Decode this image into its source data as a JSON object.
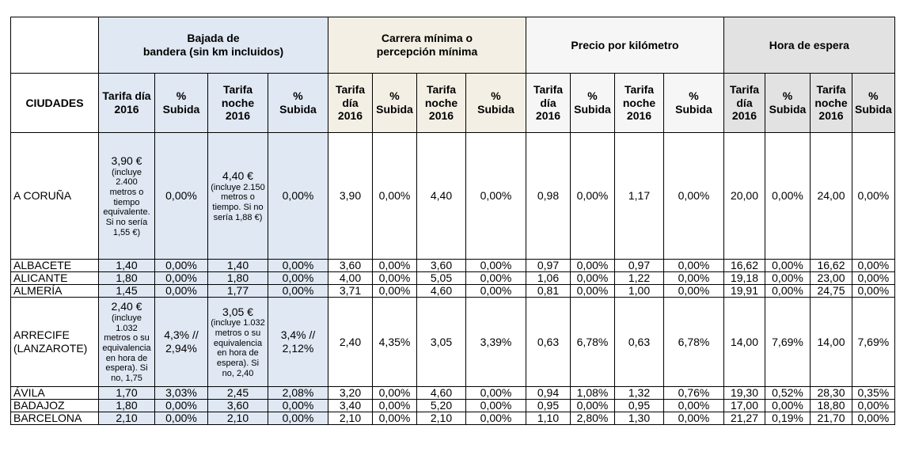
{
  "groups": [
    {
      "line1": "Bajada de",
      "line2": "bandera (sin km incluidos)"
    },
    {
      "line1": "Carrera mínima o",
      "line2": "percepción mínima"
    },
    {
      "line1": "Precio por kilómetro",
      "line2": ""
    },
    {
      "line1": "Hora de espera",
      "line2": ""
    }
  ],
  "col_header": "CIUDADES",
  "sub": {
    "dia": [
      "Tarifa día",
      "2016"
    ],
    "noche": [
      "Tarifa",
      "noche",
      "2016"
    ],
    "dia_stack": [
      "Tarifa",
      "día",
      "2016"
    ],
    "subida": [
      "%",
      "Subida"
    ]
  },
  "rows": [
    {
      "city": "A CORUÑA",
      "a1": "3,90 €",
      "a1note": "(incluye 2.400 metros o tiempo equivalente. Si no sería 1,55 €)",
      "a2": "0,00%",
      "a3": "4,40 €",
      "a3note": "(incluye 2.150 metros o tiempo. Si no sería 1,88 €)",
      "a4": "0,00%",
      "b1": "3,90",
      "b2": "0,00%",
      "b3": "4,40",
      "b4": "0,00%",
      "c1": "0,98",
      "c2": "0,00%",
      "c3": "1,17",
      "c4": "0,00%",
      "d1": "20,00",
      "d2": "0,00%",
      "d3": "24,00",
      "d4": "0,00%"
    },
    {
      "city": "ALBACETE",
      "a1": "1,40",
      "a2": "0,00%",
      "a3": "1,40",
      "a4": "0,00%",
      "b1": "3,60",
      "b2": "0,00%",
      "b3": "3,60",
      "b4": "0,00%",
      "c1": "0,97",
      "c2": "0,00%",
      "c3": "0,97",
      "c4": "0,00%",
      "d1": "16,62",
      "d2": "0,00%",
      "d3": "16,62",
      "d4": "0,00%"
    },
    {
      "city": "ALICANTE",
      "a1": "1,80",
      "a2": "0,00%",
      "a3": "1,80",
      "a4": "0,00%",
      "b1": "4,00",
      "b2": "0,00%",
      "b3": "5,05",
      "b4": "0,00%",
      "c1": "1,06",
      "c2": "0,00%",
      "c3": "1,22",
      "c4": "0,00%",
      "d1": "19,18",
      "d2": "0,00%",
      "d3": "23,00",
      "d4": "0,00%"
    },
    {
      "city": "ALMERÍA",
      "a1": "1,45",
      "a2": "0,00%",
      "a3": "1,77",
      "a4": "0,00%",
      "b1": "3,71",
      "b2": "0,00%",
      "b3": "4,60",
      "b4": "0,00%",
      "c1": "0,81",
      "c2": "0,00%",
      "c3": "1,00",
      "c4": "0,00%",
      "d1": "19,91",
      "d2": "0,00%",
      "d3": "24,75",
      "d4": "0,00%"
    },
    {
      "city": "ARRECIFE",
      "city2": "(LANZAROTE)",
      "a1": "2,40 €",
      "a1note": "(incluye 1.032 metros o su equivalencia en hora de espera). Si no, 1,75",
      "a2": "4,3% //",
      "a2b": "2,94%",
      "a3": "3,05 €",
      "a3note": "(incluye 1.032 metros o su equivalencia en hora de espera). Si no, 2,40",
      "a4": "3,4% //",
      "a4b": "2,12%",
      "b1": "2,40",
      "b2": "4,35%",
      "b3": "3,05",
      "b4": "3,39%",
      "c1": "0,63",
      "c2": "6,78%",
      "c3": "0,63",
      "c4": "6,78%",
      "d1": "14,00",
      "d2": "7,69%",
      "d3": "14,00",
      "d4": "7,69%"
    },
    {
      "city": "ÁVILA",
      "a1": "1,70",
      "a2": "3,03%",
      "a3": "2,45",
      "a4": "2,08%",
      "b1": "3,20",
      "b2": "0,00%",
      "b3": "4,60",
      "b4": "0,00%",
      "c1": "0,94",
      "c2": "1,08%",
      "c3": "1,32",
      "c4": "0,76%",
      "d1": "19,30",
      "d2": "0,52%",
      "d3": "28,30",
      "d4": "0,35%"
    },
    {
      "city": "BADAJOZ",
      "a1": "1,80",
      "a2": "0,00%",
      "a3": "3,60",
      "a4": "0,00%",
      "b1": "3,40",
      "b2": "0,00%",
      "b3": "5,20",
      "b4": "0,00%",
      "c1": "0,95",
      "c2": "0,00%",
      "c3": "0,95",
      "c4": "0,00%",
      "d1": "17,00",
      "d2": "0,00%",
      "d3": "18,80",
      "d4": "0,00%"
    },
    {
      "city": "BARCELONA",
      "a1": "2,10",
      "a2": "0,00%",
      "a3": "2,10",
      "a4": "0,00%",
      "b1": "2,10",
      "b2": "0,00%",
      "b3": "2,10",
      "b4": "0,00%",
      "c1": "1,10",
      "c2": "2,80%",
      "c3": "1,30",
      "c4": "0,00%",
      "d1": "21,27",
      "d2": "0,19%",
      "d3": "21,70",
      "d4": "0,00%"
    }
  ],
  "colors": {
    "group_a": "#dfe8f3",
    "group_b": "#f4efe4",
    "group_c": "#f6f6f6",
    "group_d": "#e2e2e2"
  }
}
